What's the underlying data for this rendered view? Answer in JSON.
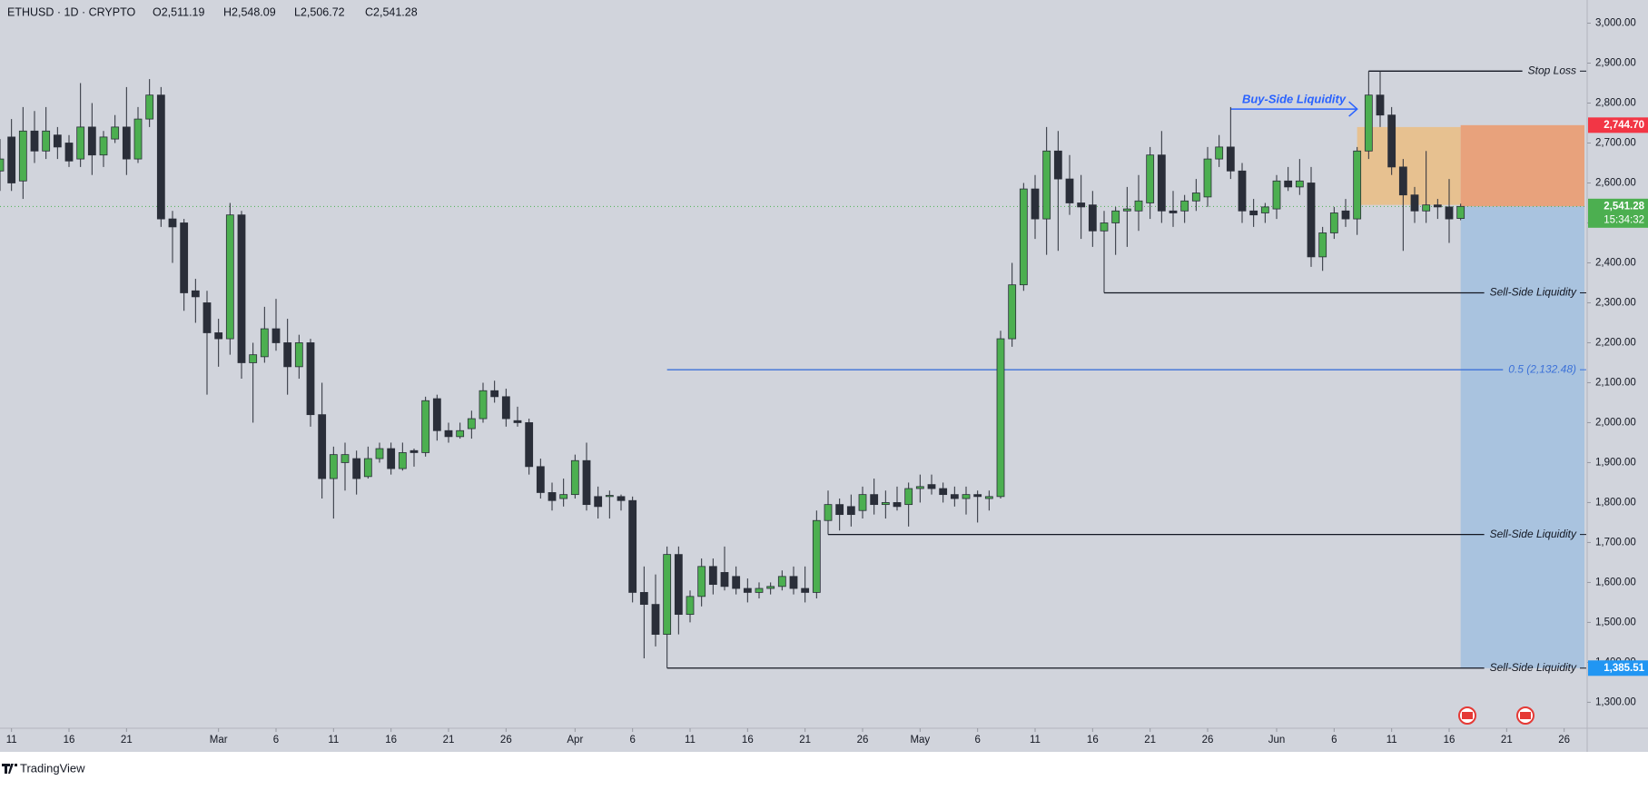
{
  "chart_data": {
    "type": "candlestick",
    "title": "ETHUSD · 1D · CRYPTO",
    "ohlc_labels": [
      "O2,511.19",
      "H2,548.09",
      "L2,506.72",
      "C2,541.28"
    ],
    "up_color": "#4caf50",
    "down_color": "#2a2e39",
    "wick_color": "#2a2e39",
    "grid": false,
    "xlim": [
      "02-10",
      "06-28"
    ],
    "ylim": [
      1235,
      3058
    ],
    "x": [
      "02-10",
      "02-11",
      "02-12",
      "02-13",
      "02-14",
      "02-15",
      "02-16",
      "02-17",
      "02-18",
      "02-19",
      "02-20",
      "02-21",
      "02-22",
      "02-23",
      "02-24",
      "02-25",
      "02-26",
      "02-27",
      "02-28",
      "03-01",
      "03-02",
      "03-03",
      "03-04",
      "03-05",
      "03-06",
      "03-07",
      "03-08",
      "03-09",
      "03-10",
      "03-11",
      "03-12",
      "03-13",
      "03-14",
      "03-15",
      "03-16",
      "03-17",
      "03-18",
      "03-19",
      "03-20",
      "03-21",
      "03-22",
      "03-23",
      "03-24",
      "03-25",
      "03-26",
      "03-27",
      "03-28",
      "03-29",
      "03-30",
      "03-31",
      "04-01",
      "04-02",
      "04-03",
      "04-04",
      "04-05",
      "04-06",
      "04-07",
      "04-08",
      "04-09",
      "04-10",
      "04-11",
      "04-12",
      "04-13",
      "04-14",
      "04-15",
      "04-16",
      "04-17",
      "04-18",
      "04-19",
      "04-20",
      "04-21",
      "04-22",
      "04-23",
      "04-24",
      "04-25",
      "04-26",
      "04-27",
      "04-28",
      "04-29",
      "04-30",
      "05-01",
      "05-02",
      "05-03",
      "05-04",
      "05-05",
      "05-06",
      "05-07",
      "05-08",
      "05-09",
      "05-10",
      "05-11",
      "05-12",
      "05-13",
      "05-14",
      "05-15",
      "05-16",
      "05-17",
      "05-18",
      "05-19",
      "05-20",
      "05-21",
      "05-22",
      "05-23",
      "05-24",
      "05-25",
      "05-26",
      "05-27",
      "05-28",
      "05-29",
      "05-30",
      "05-31",
      "06-01",
      "06-02",
      "06-03",
      "06-04",
      "06-05",
      "06-06",
      "06-07",
      "06-08",
      "06-09",
      "06-10",
      "06-11",
      "06-12",
      "06-13",
      "06-14",
      "06-15",
      "06-16",
      "06-17"
    ],
    "open": [
      2630,
      2715,
      2605,
      2730,
      2680,
      2720,
      2700,
      2660,
      2740,
      2670,
      2710,
      2740,
      2660,
      2760,
      2820,
      2510,
      2500,
      2330,
      2300,
      2225,
      2210,
      2520,
      2150,
      2165,
      2235,
      2200,
      2140,
      2200,
      2020,
      1860,
      1900,
      1910,
      1865,
      1910,
      1935,
      1885,
      1930,
      1925,
      2060,
      1980,
      1965,
      1985,
      2010,
      2080,
      2065,
      2005,
      2000,
      1890,
      1825,
      1810,
      1820,
      1905,
      1815,
      1815,
      1815,
      1805,
      1575,
      1545,
      1470,
      1670,
      1520,
      1565,
      1640,
      1625,
      1615,
      1585,
      1575,
      1585,
      1590,
      1615,
      1585,
      1575,
      1755,
      1795,
      1790,
      1780,
      1820,
      1795,
      1800,
      1795,
      1835,
      1845,
      1835,
      1820,
      1810,
      1820,
      1810,
      1815,
      2210,
      2345,
      2585,
      2510,
      2680,
      2610,
      2550,
      2545,
      2480,
      2500,
      2530,
      2530,
      2550,
      2670,
      2530,
      2530,
      2555,
      2565,
      2660,
      2690,
      2630,
      2530,
      2525,
      2535,
      2605,
      2590,
      2600,
      2415,
      2475,
      2530,
      2510,
      2680,
      2820,
      2770,
      2640,
      2570,
      2530,
      2545,
      2540,
      2511.19
    ],
    "high": [
      2710,
      2760,
      2790,
      2780,
      2790,
      2740,
      2720,
      2850,
      2800,
      2730,
      2770,
      2840,
      2790,
      2860,
      2840,
      2530,
      2510,
      2360,
      2330,
      2260,
      2550,
      2530,
      2200,
      2290,
      2310,
      2260,
      2220,
      2210,
      2100,
      1940,
      1950,
      1930,
      1940,
      1950,
      1950,
      1950,
      1935,
      2065,
      2070,
      2000,
      2000,
      2030,
      2100,
      2105,
      2085,
      2040,
      2010,
      1910,
      1850,
      1860,
      1920,
      1950,
      1840,
      1830,
      1820,
      1815,
      1640,
      1620,
      1690,
      1690,
      1580,
      1660,
      1660,
      1690,
      1640,
      1610,
      1600,
      1600,
      1630,
      1640,
      1640,
      1780,
      1830,
      1810,
      1820,
      1840,
      1860,
      1830,
      1840,
      1850,
      1870,
      1870,
      1850,
      1840,
      1840,
      1830,
      1830,
      2230,
      2400,
      2600,
      2620,
      2740,
      2730,
      2670,
      2620,
      2580,
      2530,
      2540,
      2590,
      2620,
      2690,
      2730,
      2580,
      2570,
      2610,
      2690,
      2720,
      2790,
      2650,
      2560,
      2550,
      2620,
      2640,
      2660,
      2640,
      2490,
      2540,
      2560,
      2690,
      2880,
      2880,
      2790,
      2660,
      2590,
      2680,
      2560,
      2610,
      2548.09
    ],
    "low": [
      2580,
      2580,
      2560,
      2650,
      2660,
      2660,
      2640,
      2640,
      2620,
      2640,
      2700,
      2620,
      2650,
      2740,
      2490,
      2400,
      2280,
      2250,
      2070,
      2140,
      2170,
      2110,
      2000,
      2150,
      2180,
      2070,
      2110,
      1990,
      1810,
      1760,
      1830,
      1820,
      1860,
      1900,
      1870,
      1880,
      1890,
      1915,
      1955,
      1950,
      1960,
      1960,
      2000,
      2050,
      1990,
      1990,
      1870,
      1810,
      1780,
      1790,
      1810,
      1780,
      1760,
      1760,
      1780,
      1550,
      1410,
      1440,
      1385.51,
      1470,
      1500,
      1540,
      1570,
      1580,
      1570,
      1550,
      1560,
      1570,
      1580,
      1570,
      1550,
      1560,
      1720,
      1730,
      1740,
      1760,
      1770,
      1760,
      1780,
      1740,
      1800,
      1820,
      1800,
      1790,
      1770,
      1750,
      1780,
      1810,
      2190,
      2330,
      2460,
      2420,
      2430,
      2520,
      2460,
      2440,
      2325,
      2420,
      2440,
      2480,
      2510,
      2500,
      2490,
      2500,
      2530,
      2540,
      2640,
      2610,
      2500,
      2490,
      2500,
      2510,
      2580,
      2570,
      2390,
      2380,
      2460,
      2490,
      2470,
      2660,
      2740,
      2620,
      2430,
      2500,
      2500,
      2510,
      2450,
      2506.72
    ],
    "close": [
      2660,
      2600,
      2730,
      2680,
      2730,
      2690,
      2655,
      2740,
      2670,
      2715,
      2740,
      2660,
      2760,
      2820,
      2510,
      2490,
      2325,
      2315,
      2225,
      2210,
      2520,
      2150,
      2170,
      2235,
      2200,
      2140,
      2200,
      2020,
      1860,
      1920,
      1920,
      1860,
      1910,
      1935,
      1885,
      1925,
      1925,
      2055,
      1980,
      1965,
      1980,
      2010,
      2080,
      2065,
      2010,
      2000,
      1890,
      1825,
      1805,
      1820,
      1905,
      1795,
      1790,
      1818,
      1805,
      1575,
      1545,
      1470,
      1670,
      1520,
      1565,
      1640,
      1595,
      1590,
      1585,
      1575,
      1585,
      1590,
      1615,
      1585,
      1575,
      1755,
      1795,
      1770,
      1770,
      1820,
      1795,
      1800,
      1790,
      1835,
      1840,
      1835,
      1820,
      1810,
      1820,
      1815,
      1815,
      2210,
      2345,
      2585,
      2510,
      2680,
      2610,
      2550,
      2540,
      2480,
      2500,
      2530,
      2535,
      2555,
      2670,
      2530,
      2525,
      2555,
      2575,
      2660,
      2690,
      2630,
      2530,
      2520,
      2540,
      2605,
      2590,
      2605,
      2415,
      2475,
      2525,
      2510,
      2680,
      2820,
      2770,
      2640,
      2570,
      2530,
      2545,
      2540,
      2510,
      2541.28
    ],
    "yticks": [
      {
        "value": 1300,
        "label": "1,300.00"
      },
      {
        "value": 1400,
        "label": "1,400.00"
      },
      {
        "value": 1500,
        "label": "1,500.00"
      },
      {
        "value": 1600,
        "label": "1,600.00"
      },
      {
        "value": 1700,
        "label": "1,700.00"
      },
      {
        "value": 1800,
        "label": "1,800.00"
      },
      {
        "value": 1900,
        "label": "1,900.00"
      },
      {
        "value": 2000,
        "label": "2,000.00"
      },
      {
        "value": 2100,
        "label": "2,100.00"
      },
      {
        "value": 2200,
        "label": "2,200.00"
      },
      {
        "value": 2300,
        "label": "2,300.00"
      },
      {
        "value": 2400,
        "label": "2,400.00"
      },
      {
        "value": 2500,
        "label": "2,500.00"
      },
      {
        "value": 2600,
        "label": "2,600.00"
      },
      {
        "value": 2700,
        "label": "2,700.00"
      },
      {
        "value": 2800,
        "label": "2,800.00"
      },
      {
        "value": 2900,
        "label": "2,900.00"
      },
      {
        "value": 3000,
        "label": "3,000.00"
      }
    ],
    "xticks": [
      {
        "value": "02-11",
        "label": "11"
      },
      {
        "value": "02-16",
        "label": "16"
      },
      {
        "value": "02-21",
        "label": "21"
      },
      {
        "value": "03-01",
        "label": "Mar"
      },
      {
        "value": "03-06",
        "label": "6"
      },
      {
        "value": "03-11",
        "label": "11"
      },
      {
        "value": "03-16",
        "label": "16"
      },
      {
        "value": "03-21",
        "label": "21"
      },
      {
        "value": "03-26",
        "label": "26"
      },
      {
        "value": "04-01",
        "label": "Apr"
      },
      {
        "value": "04-06",
        "label": "6"
      },
      {
        "value": "04-11",
        "label": "11"
      },
      {
        "value": "04-16",
        "label": "16"
      },
      {
        "value": "04-21",
        "label": "21"
      },
      {
        "value": "04-26",
        "label": "26"
      },
      {
        "value": "05-01",
        "label": "May"
      },
      {
        "value": "05-06",
        "label": "6"
      },
      {
        "value": "05-11",
        "label": "11"
      },
      {
        "value": "05-16",
        "label": "16"
      },
      {
        "value": "05-21",
        "label": "21"
      },
      {
        "value": "05-26",
        "label": "26"
      },
      {
        "value": "06-01",
        "label": "Jun"
      },
      {
        "value": "06-06",
        "label": "6"
      },
      {
        "value": "06-11",
        "label": "11"
      },
      {
        "value": "06-16",
        "label": "16"
      },
      {
        "value": "06-21",
        "label": "21"
      },
      {
        "value": "06-26",
        "label": "26"
      }
    ],
    "zones": [
      {
        "top": 2740,
        "bottom": 2545,
        "start": "06-08",
        "end": "06-17",
        "color": "#ebbd83"
      }
    ],
    "position": {
      "start": "06-17",
      "end": "06-28",
      "stop": {
        "value": 2744.7,
        "label": "2,744.70"
      },
      "entry": {
        "value": 2541.28,
        "label": "2,541.28"
      },
      "target": {
        "value": 1385.51,
        "label": "1,385.51"
      },
      "countdown": "15:34:32",
      "stop_color": "#e8a27c",
      "target_color": "#a9c3df",
      "stop_label_color": "#f23645",
      "entry_label_color": "#4caf50",
      "target_label_color": "#2196f3"
    },
    "levels": [
      {
        "label": "Stop Loss",
        "value": 2880,
        "start": "06-09",
        "color": "#131722"
      },
      {
        "label": "Sell-Side Liquidity",
        "value": 2325,
        "start": "05-17",
        "color": "#131722"
      },
      {
        "label": "0.5 (2,132.48)",
        "value": 2132.48,
        "start": "04-09",
        "color": "#3d72d8"
      },
      {
        "label": "Sell-Side Liquidity",
        "value": 1720,
        "start": "04-23",
        "color": "#131722"
      },
      {
        "label": "Sell-Side Liquidity",
        "value": 1385.51,
        "start": "04-09",
        "color": "#131722"
      }
    ],
    "arrow": {
      "label": "Buy-Side Liquidity",
      "value": 2785,
      "start": "05-28",
      "end": "06-08",
      "color": "#2962ff"
    }
  },
  "footer": {
    "brand": "TradingView"
  }
}
